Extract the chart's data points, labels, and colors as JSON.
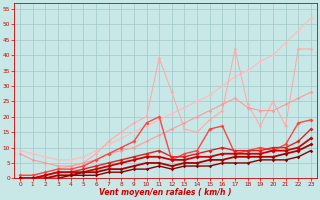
{
  "xlabel": "Vent moyen/en rafales ( km/h )",
  "xlim": [
    -0.5,
    23.5
  ],
  "ylim": [
    0,
    57
  ],
  "yticks": [
    0,
    5,
    10,
    15,
    20,
    25,
    30,
    35,
    40,
    45,
    50,
    55
  ],
  "xticks": [
    0,
    1,
    2,
    3,
    4,
    5,
    6,
    7,
    8,
    9,
    10,
    11,
    12,
    13,
    14,
    15,
    16,
    17,
    18,
    19,
    20,
    21,
    22,
    23
  ],
  "background_color": "#c8e8e8",
  "grid_color": "#a0c8c8",
  "series": [
    {
      "x": [
        0,
        1,
        2,
        3,
        4,
        5,
        6,
        7,
        8,
        9,
        10,
        11,
        12,
        13,
        14,
        15,
        16,
        17,
        18,
        19,
        20,
        21,
        22,
        23
      ],
      "y": [
        9,
        8,
        7,
        6,
        6,
        7,
        9,
        11,
        13,
        15,
        17,
        19,
        21,
        23,
        25,
        27,
        30,
        33,
        35,
        38,
        40,
        44,
        48,
        52
      ],
      "color": "#ffbbbb",
      "lw": 0.8,
      "marker": "D",
      "ms": 1.8
    },
    {
      "x": [
        0,
        1,
        2,
        3,
        4,
        5,
        6,
        7,
        8,
        9,
        10,
        11,
        12,
        13,
        14,
        15,
        16,
        17,
        18,
        19,
        20,
        21,
        22,
        23
      ],
      "y": [
        1,
        1,
        2,
        3,
        4,
        5,
        8,
        12,
        15,
        18,
        20,
        39,
        28,
        16,
        15,
        19,
        22,
        42,
        24,
        17,
        25,
        17,
        42,
        42
      ],
      "color": "#ffaaaa",
      "lw": 0.8,
      "marker": "D",
      "ms": 1.8
    },
    {
      "x": [
        0,
        1,
        2,
        3,
        4,
        5,
        6,
        7,
        8,
        9,
        10,
        11,
        12,
        13,
        14,
        15,
        16,
        17,
        18,
        19,
        20,
        21,
        22,
        23
      ],
      "y": [
        8,
        6,
        5,
        4,
        4,
        5,
        6,
        8,
        9,
        10,
        12,
        14,
        16,
        18,
        20,
        22,
        24,
        26,
        23,
        22,
        22,
        24,
        26,
        28
      ],
      "color": "#ff9999",
      "lw": 0.8,
      "marker": "D",
      "ms": 1.8
    },
    {
      "x": [
        0,
        1,
        2,
        3,
        4,
        5,
        6,
        7,
        8,
        9,
        10,
        11,
        12,
        13,
        14,
        15,
        16,
        17,
        18,
        19,
        20,
        21,
        22,
        23
      ],
      "y": [
        1,
        1,
        2,
        3,
        3,
        4,
        6,
        8,
        10,
        12,
        18,
        20,
        6,
        8,
        9,
        16,
        17,
        8,
        9,
        10,
        9,
        11,
        18,
        19
      ],
      "color": "#ff4444",
      "lw": 1.0,
      "marker": "D",
      "ms": 2.0
    },
    {
      "x": [
        0,
        1,
        2,
        3,
        4,
        5,
        6,
        7,
        8,
        9,
        10,
        11,
        12,
        13,
        14,
        15,
        16,
        17,
        18,
        19,
        20,
        21,
        22,
        23
      ],
      "y": [
        0,
        0,
        1,
        2,
        2,
        3,
        4,
        5,
        6,
        7,
        8,
        9,
        7,
        7,
        8,
        9,
        10,
        9,
        9,
        9,
        10,
        10,
        12,
        16
      ],
      "color": "#dd2222",
      "lw": 1.0,
      "marker": "D",
      "ms": 2.0
    },
    {
      "x": [
        0,
        1,
        2,
        3,
        4,
        5,
        6,
        7,
        8,
        9,
        10,
        11,
        12,
        13,
        14,
        15,
        16,
        17,
        18,
        19,
        20,
        21,
        22,
        23
      ],
      "y": [
        0,
        0,
        1,
        2,
        2,
        2,
        3,
        4,
        5,
        6,
        7,
        7,
        6,
        6,
        7,
        7,
        8,
        8,
        8,
        8,
        9,
        9,
        10,
        13
      ],
      "color": "#cc0000",
      "lw": 1.3,
      "marker": "D",
      "ms": 2.0
    },
    {
      "x": [
        0,
        1,
        2,
        3,
        4,
        5,
        6,
        7,
        8,
        9,
        10,
        11,
        12,
        13,
        14,
        15,
        16,
        17,
        18,
        19,
        20,
        21,
        22,
        23
      ],
      "y": [
        0,
        0,
        0,
        1,
        1,
        2,
        2,
        3,
        3,
        4,
        5,
        5,
        4,
        5,
        5,
        6,
        6,
        7,
        7,
        7,
        7,
        8,
        9,
        11
      ],
      "color": "#aa0000",
      "lw": 1.3,
      "marker": "D",
      "ms": 2.0
    },
    {
      "x": [
        0,
        1,
        2,
        3,
        4,
        5,
        6,
        7,
        8,
        9,
        10,
        11,
        12,
        13,
        14,
        15,
        16,
        17,
        18,
        19,
        20,
        21,
        22,
        23
      ],
      "y": [
        0,
        0,
        0,
        0,
        1,
        1,
        1,
        2,
        2,
        3,
        3,
        4,
        3,
        4,
        4,
        4,
        5,
        5,
        5,
        6,
        6,
        6,
        7,
        9
      ],
      "color": "#880000",
      "lw": 1.0,
      "marker": "D",
      "ms": 1.8
    }
  ]
}
